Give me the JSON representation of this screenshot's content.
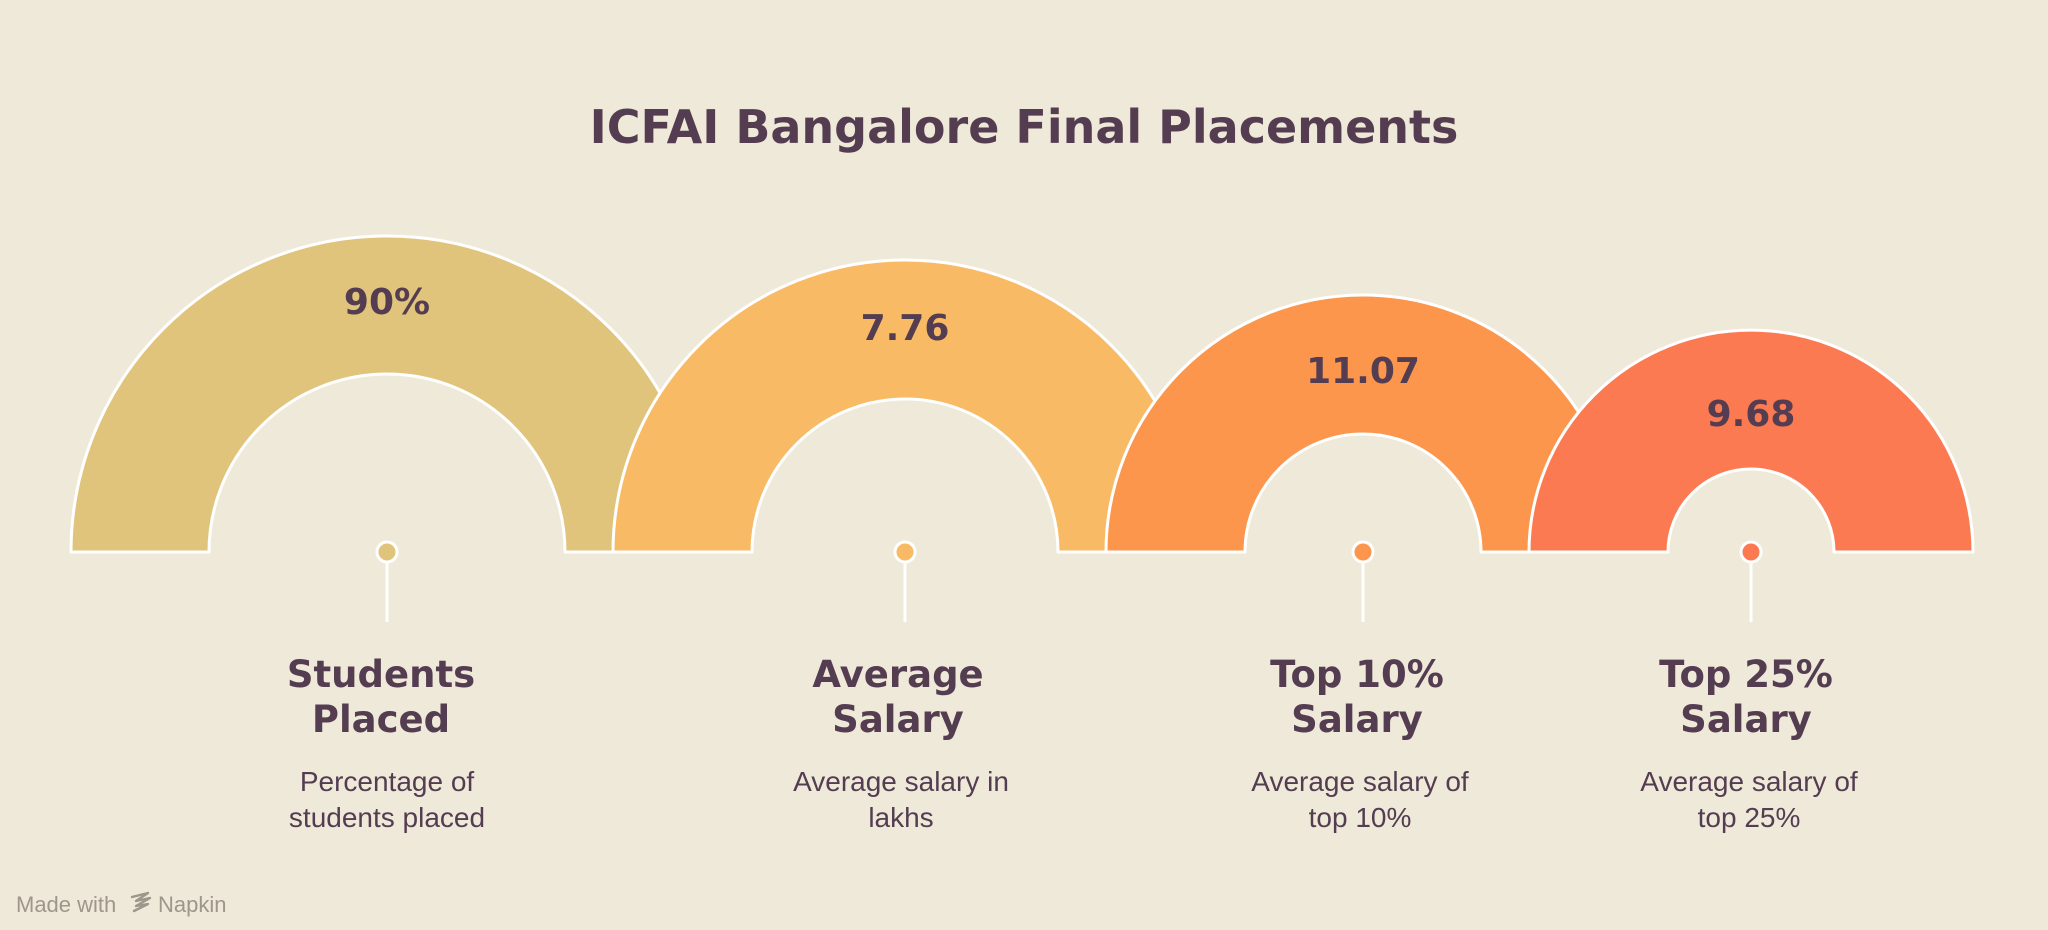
{
  "title": "ICFAI Bangalore Final Placements",
  "colors": {
    "background": "#efe9d9",
    "text": "#543d51",
    "outline": "#ffffff"
  },
  "metrics": [
    {
      "value": "90%",
      "label_lines": [
        "Students",
        "Placed"
      ],
      "description_lines": [
        "Percentage of",
        "students placed"
      ],
      "color": "#e1c47c"
    },
    {
      "value": "7.76",
      "label_lines": [
        "Average",
        "Salary"
      ],
      "description_lines": [
        "Average salary in",
        "lakhs"
      ],
      "color": "#f9ba66"
    },
    {
      "value": "11.07",
      "label_lines": [
        "Top 10%",
        "Salary"
      ],
      "description_lines": [
        "Average salary of",
        "top 10%"
      ],
      "color": "#fd964d"
    },
    {
      "value": "9.68",
      "label_lines": [
        "Top 25%",
        "Salary"
      ],
      "description_lines": [
        "Average salary of",
        "top 25%"
      ],
      "color": "#fb7a51"
    }
  ],
  "watermark": {
    "prefix": "Made with",
    "brand": "Napkin",
    "icon": "napkin-logo-icon"
  }
}
